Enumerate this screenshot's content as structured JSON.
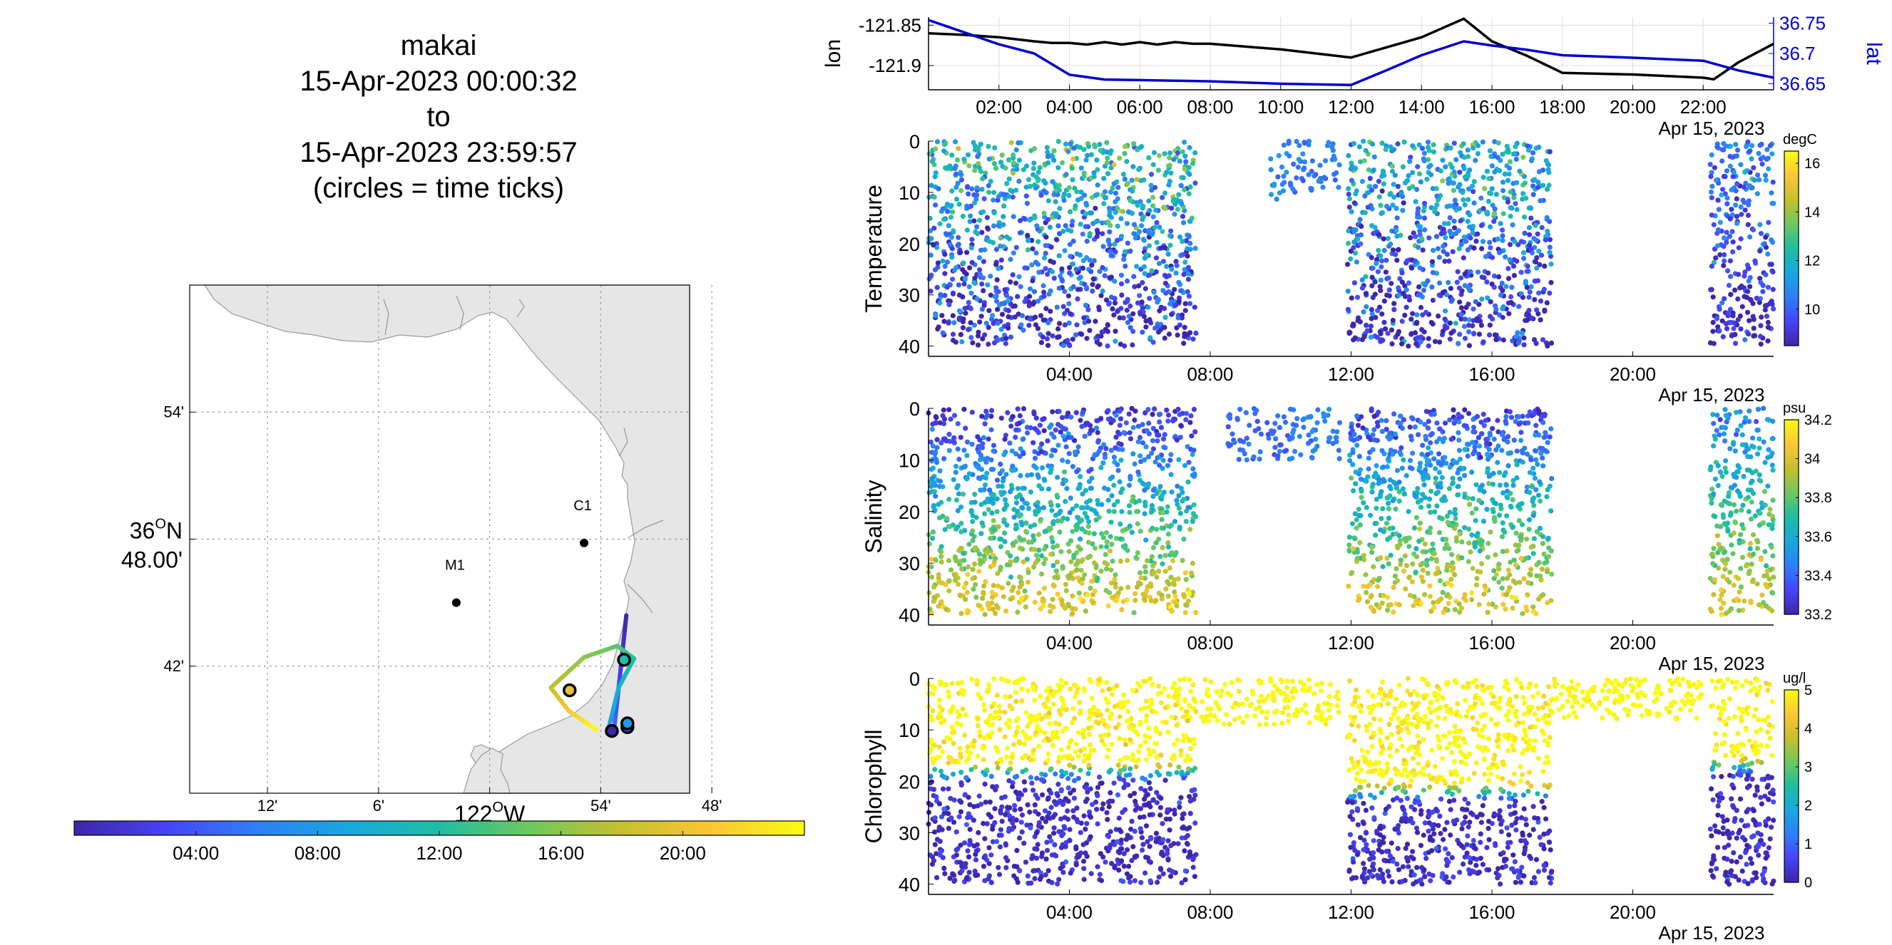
{
  "title": {
    "lines": [
      "makai",
      "15-Apr-2023 00:00:32",
      "to",
      "15-Apr-2023 23:59:57",
      "(circles = time ticks)"
    ]
  },
  "colors": {
    "lon": "#000000",
    "lat": "#0000d0",
    "land": "#e6e6e6",
    "coast": "#9a9a9a",
    "parula": [
      "#3e26a8",
      "#4743f6",
      "#2f7ff7",
      "#18a8de",
      "#1ebda2",
      "#6fc85e",
      "#c6bf2d",
      "#fbc736",
      "#f9fb15"
    ]
  },
  "chart_data": [
    {
      "id": "track-map",
      "type": "scatter",
      "lat_ticks": [
        {
          "value": 36.9,
          "label": "54'"
        },
        {
          "value": 36.8,
          "label_line1": "36",
          "label_sup": "O",
          "label_n": "N",
          "label_line2": "48.00'"
        },
        {
          "value": 36.7,
          "label": "42'"
        }
      ],
      "lon_ticks": [
        {
          "value": -122.2,
          "label": "12'"
        },
        {
          "value": -122.1,
          "label": "6'"
        },
        {
          "value": -122.0,
          "label_main": "122",
          "label_sup": "O",
          "label_w": "W"
        },
        {
          "value": -121.9,
          "label": "54'"
        },
        {
          "value": -121.8,
          "label": "48'"
        }
      ],
      "xlim": [
        -122.27,
        -121.82
      ],
      "ylim": [
        36.6,
        37.0
      ],
      "stations": [
        {
          "name": "M1",
          "lon": -122.03,
          "lat": 36.75
        },
        {
          "name": "C1",
          "lon": -121.915,
          "lat": 36.797
        }
      ],
      "track": [
        {
          "t": 0.0,
          "lon": -121.877,
          "lat": 36.74
        },
        {
          "t": 2.5,
          "lon": -121.883,
          "lat": 36.69
        },
        {
          "t": 5.0,
          "lon": -121.888,
          "lat": 36.65
        },
        {
          "t": 7.5,
          "lon": -121.894,
          "lat": 36.647
        },
        {
          "t": 10.0,
          "lon": -121.884,
          "lat": 36.683
        },
        {
          "t": 12.0,
          "lon": -121.87,
          "lat": 36.706
        },
        {
          "t": 14.0,
          "lon": -121.885,
          "lat": 36.716
        },
        {
          "t": 16.0,
          "lon": -121.915,
          "lat": 36.707
        },
        {
          "t": 18.0,
          "lon": -121.945,
          "lat": 36.683
        },
        {
          "t": 20.5,
          "lon": -121.929,
          "lat": 36.665
        },
        {
          "t": 24.0,
          "lon": -121.904,
          "lat": 36.65
        }
      ],
      "time_tick_circles": [
        {
          "label": "04:00",
          "t": 4,
          "lon": -121.876,
          "lat": 36.652
        },
        {
          "label": "08:00",
          "t": 8,
          "lon": -121.876,
          "lat": 36.655
        },
        {
          "label": "12:00",
          "t": 12,
          "lon": -121.879,
          "lat": 36.705
        },
        {
          "label": "20:00",
          "t": 20,
          "lon": -121.928,
          "lat": 36.681
        },
        {
          "label": "00:00",
          "t": 0,
          "lon": -121.89,
          "lat": 36.649
        }
      ]
    },
    {
      "id": "time-colorbar",
      "type": "heatmap",
      "range_hours": [
        0,
        24
      ],
      "ticks": [
        "04:00",
        "08:00",
        "12:00",
        "16:00",
        "20:00"
      ],
      "tick_hours": [
        4,
        8,
        12,
        16,
        20
      ]
    },
    {
      "id": "lon-lat",
      "type": "line",
      "x_hours_range": [
        0,
        24
      ],
      "x_ticks": [
        "02:00",
        "04:00",
        "06:00",
        "08:00",
        "10:00",
        "12:00",
        "14:00",
        "16:00",
        "18:00",
        "20:00",
        "22:00"
      ],
      "x_tick_hours": [
        2,
        4,
        6,
        8,
        10,
        12,
        14,
        16,
        18,
        20,
        22
      ],
      "date_label": "Apr 15, 2023",
      "ylabel_left": "lon",
      "ylabel_right": "lat",
      "left_ylim": [
        -121.93,
        -121.84
      ],
      "left_ticks": [
        -121.85,
        -121.9
      ],
      "left_tick_labels": [
        "-121.85",
        "-121.9"
      ],
      "right_ylim": [
        36.64,
        36.76
      ],
      "right_ticks": [
        36.75,
        36.7,
        36.65
      ],
      "right_tick_labels": [
        "36.75",
        "36.7",
        "36.65"
      ],
      "series": [
        {
          "name": "lon",
          "axis": "left",
          "x": [
            0,
            1,
            2,
            3,
            3.5,
            4,
            4.5,
            5,
            5.5,
            6,
            6.5,
            7,
            7.5,
            8,
            10,
            12,
            14,
            15.2,
            16,
            17,
            18,
            20,
            22,
            22.3,
            23,
            24
          ],
          "y": [
            -121.86,
            -121.862,
            -121.865,
            -121.87,
            -121.872,
            -121.872,
            -121.874,
            -121.871,
            -121.874,
            -121.871,
            -121.874,
            -121.871,
            -121.873,
            -121.873,
            -121.88,
            -121.89,
            -121.865,
            -121.842,
            -121.87,
            -121.888,
            -121.909,
            -121.911,
            -121.915,
            -121.917,
            -121.896,
            -121.873
          ]
        },
        {
          "name": "lat",
          "axis": "right",
          "x": [
            0,
            1,
            2,
            3,
            4,
            5,
            6,
            8,
            10,
            12,
            13,
            14,
            15.2,
            16,
            17,
            18,
            20,
            22,
            23,
            24
          ],
          "y": [
            36.755,
            36.735,
            36.715,
            36.7,
            36.665,
            36.657,
            36.656,
            36.654,
            36.65,
            36.648,
            36.672,
            36.697,
            36.72,
            36.713,
            36.706,
            36.697,
            36.693,
            36.688,
            36.672,
            36.66
          ]
        }
      ]
    },
    {
      "id": "temperature",
      "type": "scatter",
      "ylabel": "Temperature",
      "x_ticks": [
        "04:00",
        "08:00",
        "12:00",
        "16:00",
        "20:00"
      ],
      "x_tick_hours": [
        4,
        8,
        12,
        16,
        20
      ],
      "date_label": "Apr 15, 2023",
      "ylim": [
        0,
        42
      ],
      "y_ticks": [
        0,
        10,
        20,
        30,
        40
      ],
      "colorbar": {
        "units": "degC",
        "range": [
          8.5,
          16.5
        ],
        "ticks": [
          16,
          14,
          12,
          10
        ],
        "tick_labels": [
          "16",
          "14",
          "12",
          "10"
        ]
      },
      "profiles": [
        {
          "start": 0.0,
          "end": 7.6,
          "max_depth": 40,
          "value_top": 12.5,
          "value_bottom": 8.8,
          "spread": 1.2
        },
        {
          "start": 9.7,
          "end": 10.2,
          "max_depth": 12,
          "value_top": 11.0,
          "value_bottom": 10.0,
          "spread": 0.4
        },
        {
          "start": 10.2,
          "end": 11.7,
          "max_depth": 10,
          "value_top": 10.5,
          "value_bottom": 10.0,
          "spread": 0.3
        },
        {
          "start": 11.9,
          "end": 17.7,
          "max_depth": 40,
          "value_top": 12.0,
          "value_bottom": 8.8,
          "spread": 1.2
        },
        {
          "start": 22.2,
          "end": 24.0,
          "max_depth": 40,
          "value_top": 10.5,
          "value_bottom": 8.8,
          "spread": 0.8
        }
      ]
    },
    {
      "id": "salinity",
      "type": "scatter",
      "ylabel": "Salinity",
      "x_ticks": [
        "04:00",
        "08:00",
        "12:00",
        "16:00",
        "20:00"
      ],
      "x_tick_hours": [
        4,
        8,
        12,
        16,
        20
      ],
      "date_label": "Apr 15, 2023",
      "ylim": [
        0,
        42
      ],
      "y_ticks": [
        0,
        10,
        20,
        30,
        40
      ],
      "colorbar": {
        "units": "psu",
        "range": [
          33.2,
          34.2
        ],
        "ticks": [
          34.2,
          34,
          33.8,
          33.6,
          33.4,
          33.2
        ],
        "tick_labels": [
          "34.2",
          "34",
          "33.8",
          "33.6",
          "33.4",
          "33.2"
        ]
      },
      "profiles": [
        {
          "start": 0.0,
          "end": 7.6,
          "max_depth": 40,
          "value_top": 33.25,
          "value_bottom": 34.0,
          "spread": 0.08
        },
        {
          "start": 8.5,
          "end": 10.2,
          "max_depth": 10,
          "value_top": 33.4,
          "value_bottom": 33.4,
          "spread": 0.03
        },
        {
          "start": 10.2,
          "end": 11.7,
          "max_depth": 10,
          "value_top": 33.45,
          "value_bottom": 33.45,
          "spread": 0.03
        },
        {
          "start": 11.9,
          "end": 17.7,
          "max_depth": 40,
          "value_top": 33.3,
          "value_bottom": 34.0,
          "spread": 0.08
        },
        {
          "start": 22.2,
          "end": 24.0,
          "max_depth": 40,
          "value_top": 33.45,
          "value_bottom": 33.95,
          "spread": 0.08
        }
      ]
    },
    {
      "id": "chlorophyll",
      "type": "scatter",
      "ylabel": "Chlorophyll",
      "x_ticks": [
        "04:00",
        "08:00",
        "12:00",
        "16:00",
        "20:00"
      ],
      "x_tick_hours": [
        4,
        8,
        12,
        16,
        20
      ],
      "date_label": "Apr 15, 2023",
      "ylim": [
        0,
        42
      ],
      "y_ticks": [
        0,
        10,
        20,
        30,
        40
      ],
      "colorbar": {
        "units": "ug/l",
        "range": [
          0,
          5
        ],
        "ticks": [
          5,
          4,
          3,
          2,
          1,
          0
        ],
        "tick_labels": [
          "5",
          "4",
          "3",
          "2",
          "1",
          "0"
        ]
      },
      "profiles": [
        {
          "start": 0.0,
          "end": 7.6,
          "max_depth": 40,
          "value_top": 5.0,
          "value_bottom": 0.2,
          "spread": 0.3,
          "mixed_depth": 16
        },
        {
          "start": 7.7,
          "end": 10.2,
          "max_depth": 9,
          "value_top": 5.0,
          "value_bottom": 5.0,
          "spread": 0.1
        },
        {
          "start": 10.2,
          "end": 11.7,
          "max_depth": 9,
          "value_top": 5.0,
          "value_bottom": 5.0,
          "spread": 0.1
        },
        {
          "start": 11.9,
          "end": 17.7,
          "max_depth": 40,
          "value_top": 5.0,
          "value_bottom": 0.2,
          "spread": 0.3,
          "mixed_depth": 20
        },
        {
          "start": 17.7,
          "end": 22.0,
          "max_depth": 8,
          "value_top": 5.0,
          "value_bottom": 5.0,
          "spread": 0.1
        },
        {
          "start": 22.2,
          "end": 24.0,
          "max_depth": 40,
          "value_top": 5.0,
          "value_bottom": 0.2,
          "spread": 0.3,
          "mixed_depth": 15
        }
      ]
    }
  ]
}
